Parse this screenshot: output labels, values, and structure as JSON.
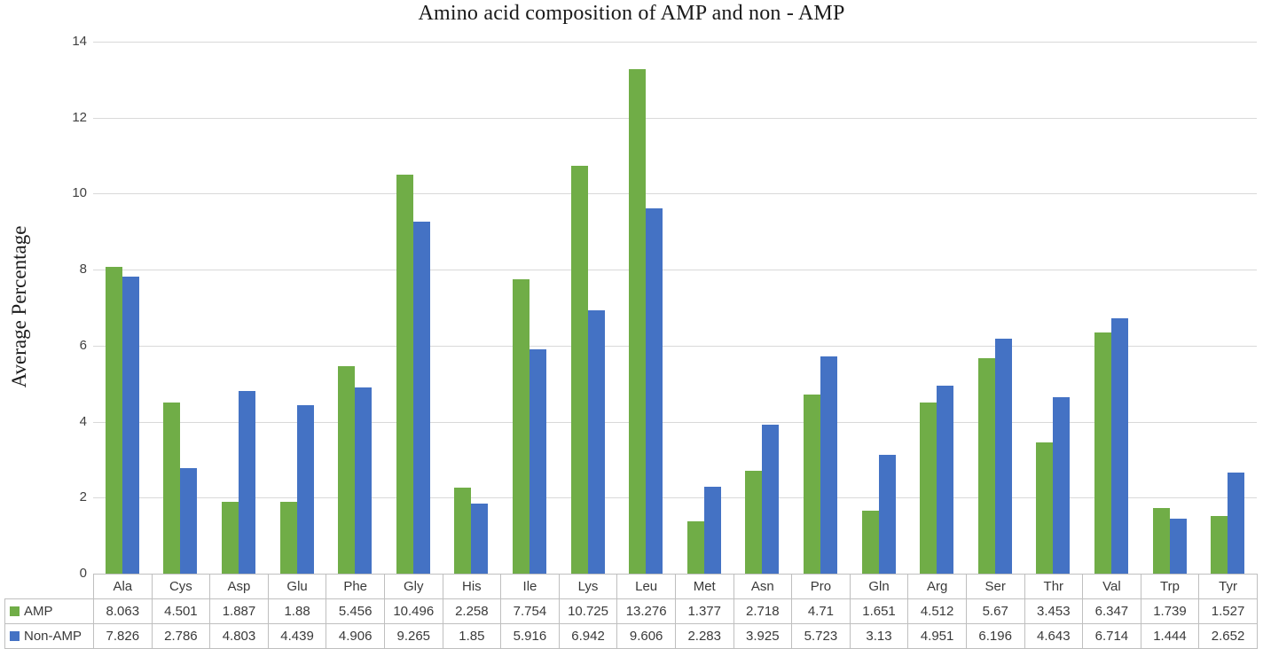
{
  "chart_data": {
    "type": "bar",
    "title": "Amino acid composition of AMP and non - AMP",
    "xlabel": "",
    "ylabel": "Average Percentage",
    "ylim": [
      0,
      14
    ],
    "yticks": [
      0,
      2,
      4,
      6,
      8,
      10,
      12,
      14
    ],
    "grid": true,
    "legend_position": "data-table-left",
    "categories": [
      "Ala",
      "Cys",
      "Asp",
      "Glu",
      "Phe",
      "Gly",
      "His",
      "Ile",
      "Lys",
      "Leu",
      "Met",
      "Asn",
      "Pro",
      "Gln",
      "Arg",
      "Ser",
      "Thr",
      "Val",
      "Trp",
      "Tyr"
    ],
    "series": [
      {
        "name": "AMP",
        "color": "#70AD47",
        "values": [
          8.063,
          4.501,
          1.887,
          1.88,
          5.456,
          10.496,
          2.258,
          7.754,
          10.725,
          13.276,
          1.377,
          2.718,
          4.71,
          1.651,
          4.512,
          5.67,
          3.453,
          6.347,
          1.739,
          1.527
        ],
        "value_labels": [
          "8.063",
          "4.501",
          "1.887",
          "1.88",
          "5.456",
          "10.496",
          "2.258",
          "7.754",
          "10.725",
          "13.276",
          "1.377",
          "2.718",
          "4.71",
          "1.651",
          "4.512",
          "5.67",
          "3.453",
          "6.347",
          "1.739",
          "1.527"
        ]
      },
      {
        "name": "Non-AMP",
        "color": "#4472C4",
        "values": [
          7.826,
          2.786,
          4.803,
          4.439,
          4.906,
          9.265,
          1.85,
          5.916,
          6.942,
          9.606,
          2.283,
          3.925,
          5.723,
          3.13,
          4.951,
          6.196,
          4.643,
          6.714,
          1.444,
          2.652
        ],
        "value_labels": [
          "7.826",
          "2.786",
          "4.803",
          "4.439",
          "4.906",
          "9.265",
          "1.85",
          "5.916",
          "6.942",
          "9.606",
          "2.283",
          "3.925",
          "5.723",
          "3.13",
          "4.951",
          "6.196",
          "4.643",
          "6.714",
          "1.444",
          "2.652"
        ]
      }
    ]
  },
  "colors": {
    "amp_green": "#70AD47",
    "nonamp_blue": "#4472C4",
    "gridline": "#D9D9D9",
    "table_border": "#BFBFBF",
    "text": "#3A3A3A",
    "background": "#FFFFFF"
  }
}
